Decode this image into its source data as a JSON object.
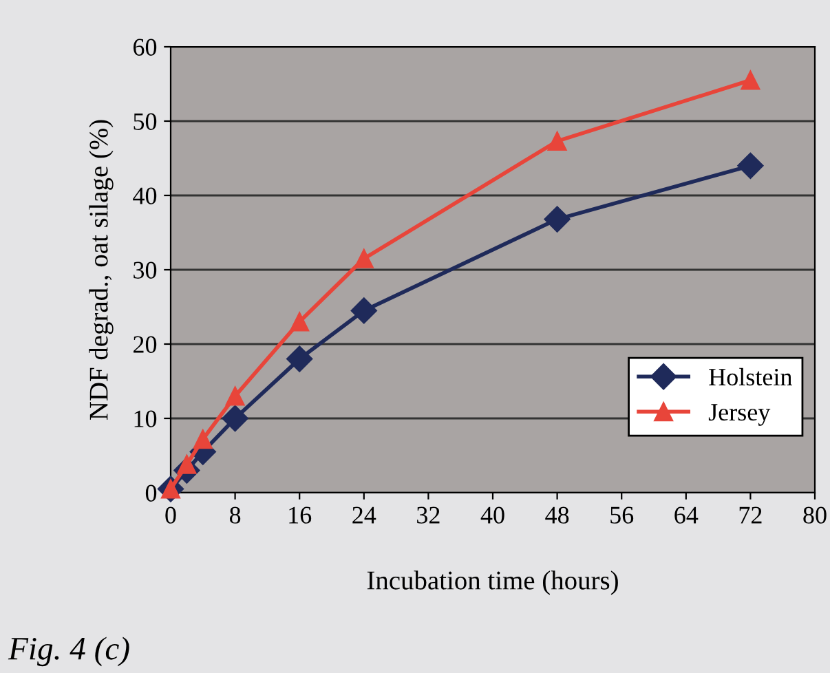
{
  "chart_data": {
    "type": "line",
    "xlabel": "Incubation time (hours)",
    "ylabel": "NDF degrad., oat silage (%)",
    "annotations": [
      "Fig. 4 (c)"
    ],
    "x": [
      0,
      2,
      4,
      8,
      16,
      24,
      48,
      72
    ],
    "series": [
      {
        "name": "Holstein",
        "color": "#1f2a5a",
        "marker": "diamond",
        "values": [
          0.5,
          3,
          5.5,
          10,
          18,
          24.5,
          36.8,
          44
        ]
      },
      {
        "name": "Jersey",
        "color": "#e8453a",
        "marker": "triangle",
        "values": [
          0.5,
          3.8,
          7.2,
          13,
          23,
          31.5,
          47.3,
          55.5
        ]
      }
    ],
    "xlim": [
      0,
      80
    ],
    "xticks": [
      0,
      8,
      16,
      24,
      32,
      40,
      48,
      56,
      64,
      72,
      80
    ],
    "ylim": [
      0,
      60
    ],
    "yticks": [
      0,
      10,
      20,
      30,
      40,
      50,
      60
    ],
    "grid": "y",
    "legend": "bottom right",
    "line_style": "solid"
  }
}
